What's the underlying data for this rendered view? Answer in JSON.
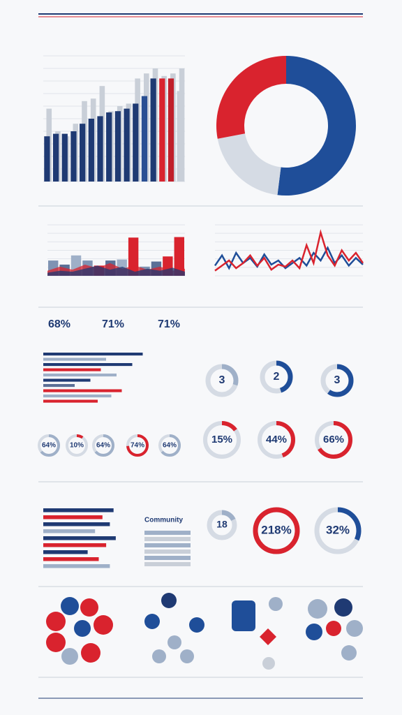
{
  "bar_chart": {
    "ylim": [
      0,
      100
    ],
    "values": [
      36,
      38,
      38,
      40,
      46,
      50,
      52,
      55,
      56,
      58,
      62,
      68,
      82,
      82,
      82,
      72
    ],
    "colors": [
      "#1f3a73",
      "#1f3a73",
      "#1f3a73",
      "#1f3a73",
      "#1f3a73",
      "#1f3a73",
      "#1f3a73",
      "#1f3a73",
      "#1f3a73",
      "#1f3a73",
      "#1f3a73",
      "#2a4f93",
      "#1f3a73",
      "#d9232e",
      "#c01f2a",
      "#c9cfd8"
    ],
    "ghost_values": [
      58,
      40,
      36,
      46,
      64,
      66,
      76,
      56,
      60,
      62,
      82,
      86,
      90,
      84,
      86,
      90
    ]
  },
  "donut": {
    "values": [
      52,
      20,
      28
    ],
    "colors": [
      "#1f4e99",
      "#d5dbe4",
      "#d9232e"
    ]
  },
  "area_chart": {
    "ylim": [
      0,
      100
    ],
    "bars": [
      30,
      22,
      40,
      30,
      20,
      30,
      32,
      75,
      18,
      28,
      38,
      76
    ],
    "bar_colors": [
      "#7f93b3",
      "#5b6f96",
      "#9fb0c8",
      "#7f93b3",
      "#d9232e",
      "#5b6f96",
      "#9fb0c8",
      "#d9232e",
      "#7f93b3",
      "#5b6f96",
      "#d9232e",
      "#d9232e"
    ],
    "series": [
      {
        "color": "#d9232e",
        "values": [
          10,
          18,
          12,
          22,
          15,
          25,
          14,
          20,
          12,
          18,
          10,
          14
        ]
      },
      {
        "color": "#1f3a73",
        "values": [
          6,
          10,
          8,
          14,
          20,
          12,
          18,
          8,
          14,
          10,
          16,
          8
        ]
      }
    ]
  },
  "line_chart": {
    "ylim": [
      0,
      100
    ],
    "series": [
      {
        "color": "#1f4e99",
        "values": [
          20,
          40,
          15,
          45,
          25,
          35,
          18,
          42,
          22,
          30,
          15,
          25,
          35,
          20,
          45,
          30,
          55,
          25,
          40,
          20,
          35,
          22
        ]
      },
      {
        "color": "#d9232e",
        "values": [
          10,
          20,
          30,
          15,
          25,
          40,
          20,
          35,
          12,
          22,
          18,
          30,
          15,
          60,
          25,
          85,
          40,
          20,
          50,
          30,
          45,
          25
        ]
      }
    ]
  },
  "stats": [
    "68%",
    "71%",
    "71%"
  ],
  "hbars": {
    "xlim": [
      0,
      100
    ],
    "values": [
      95,
      60,
      85,
      55,
      70,
      45,
      30,
      75,
      65,
      52
    ],
    "colors": [
      "#1f3a73",
      "#9fb0c8",
      "#1f3a73",
      "#d9232e",
      "#9fb0c8",
      "#1f3a73",
      "#5b6f96",
      "#d9232e",
      "#9fb0c8",
      "#d9232e"
    ]
  },
  "rings": [
    {
      "label": "3",
      "value": 30,
      "color": "#9fb0c8"
    },
    {
      "label": "2",
      "value": 45,
      "color": "#1f4e99"
    },
    {
      "label": "3",
      "value": 60,
      "color": "#1f4e99"
    }
  ],
  "small_rings": [
    {
      "label": "64%",
      "value": 64
    },
    {
      "label": "10%",
      "value": 10
    },
    {
      "label": "64%",
      "value": 64
    },
    {
      "label": "74%",
      "value": 74
    },
    {
      "label": "64%",
      "value": 64
    }
  ],
  "gauges": [
    {
      "label": "15%",
      "value": 15
    },
    {
      "label": "44%",
      "value": 44
    },
    {
      "label": "66%",
      "value": 66
    }
  ],
  "hbars2": {
    "xlim": [
      0,
      100
    ],
    "values": [
      95,
      80,
      90,
      70,
      98,
      85,
      60,
      75,
      90
    ],
    "colors": [
      "#1f3a73",
      "#d9232e",
      "#1f3a73",
      "#9fb0c8",
      "#1f3a73",
      "#d9232e",
      "#1f3a73",
      "#d9232e",
      "#9fb0c8"
    ]
  },
  "community": "Community",
  "big_rings": [
    {
      "label": "18",
      "value": 18
    },
    {
      "label": "218%",
      "value": 218
    },
    {
      "label": "32%",
      "value": 32
    }
  ]
}
